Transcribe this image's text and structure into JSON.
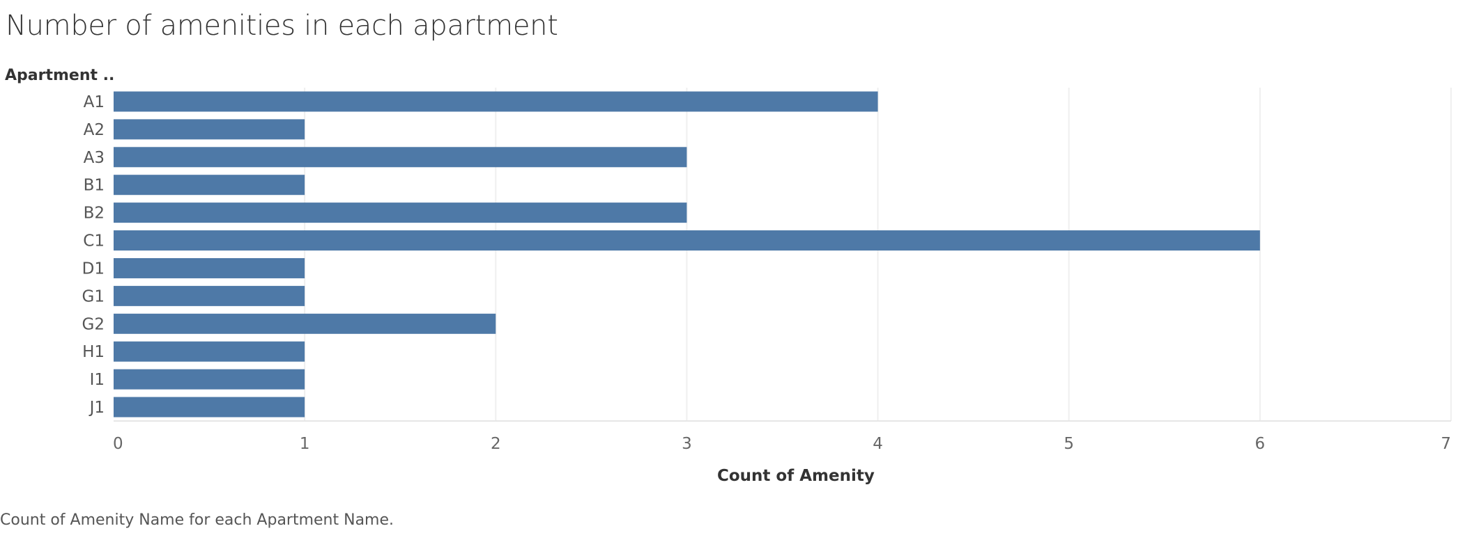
{
  "chart_data": {
    "type": "bar",
    "orientation": "horizontal",
    "title": "Number of amenities in each apartment",
    "row_header": "Apartment ..",
    "xlabel": "Count of Amenity",
    "caption": "Count of Amenity Name for each Apartment Name.",
    "categories": [
      "A1",
      "A2",
      "A3",
      "B1",
      "B2",
      "C1",
      "D1",
      "G1",
      "G2",
      "H1",
      "I1",
      "J1"
    ],
    "values": [
      4,
      1,
      3,
      1,
      3,
      6,
      1,
      1,
      2,
      1,
      1,
      1
    ],
    "xlim": [
      0,
      7
    ],
    "xticks": [
      0,
      1,
      2,
      3,
      4,
      5,
      6,
      7
    ],
    "grid": "vertical",
    "bar_color": "#4e79a7"
  }
}
